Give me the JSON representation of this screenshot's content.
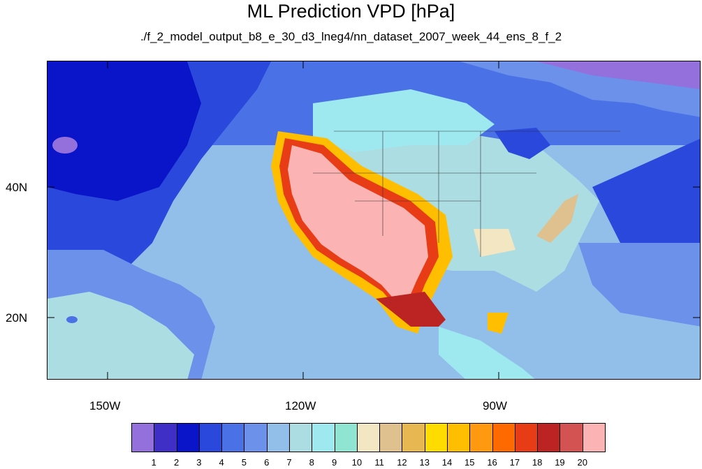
{
  "title": "ML Prediction VPD [hPa]",
  "subtitle": "./f_2_model_output_b8_e_30_d3_lneg4/nn_dataset_2007_week_44_ens_8_f_2",
  "axes": {
    "x_ticks": [
      "150W",
      "120W",
      "90W"
    ],
    "y_ticks": [
      "40N",
      "20N"
    ]
  },
  "colorbar": {
    "labels": [
      "1",
      "2",
      "3",
      "4",
      "5",
      "6",
      "7",
      "8",
      "9",
      "10",
      "11",
      "12",
      "13",
      "14",
      "15",
      "16",
      "17",
      "18",
      "19",
      "20"
    ],
    "colors": [
      "#9370db",
      "#3f2fc7",
      "#0a14c8",
      "#2b48dd",
      "#4a72e6",
      "#6b91ea",
      "#92bfe9",
      "#acdde2",
      "#9ee9ef",
      "#8fe5d1",
      "#f3e6c2",
      "#dfc08f",
      "#e7b851",
      "#ffdc00",
      "#ffbe00",
      "#ff9a10",
      "#ff6a00",
      "#e83c16",
      "#bc2323",
      "#d35252",
      "#fbb3b3"
    ]
  }
}
